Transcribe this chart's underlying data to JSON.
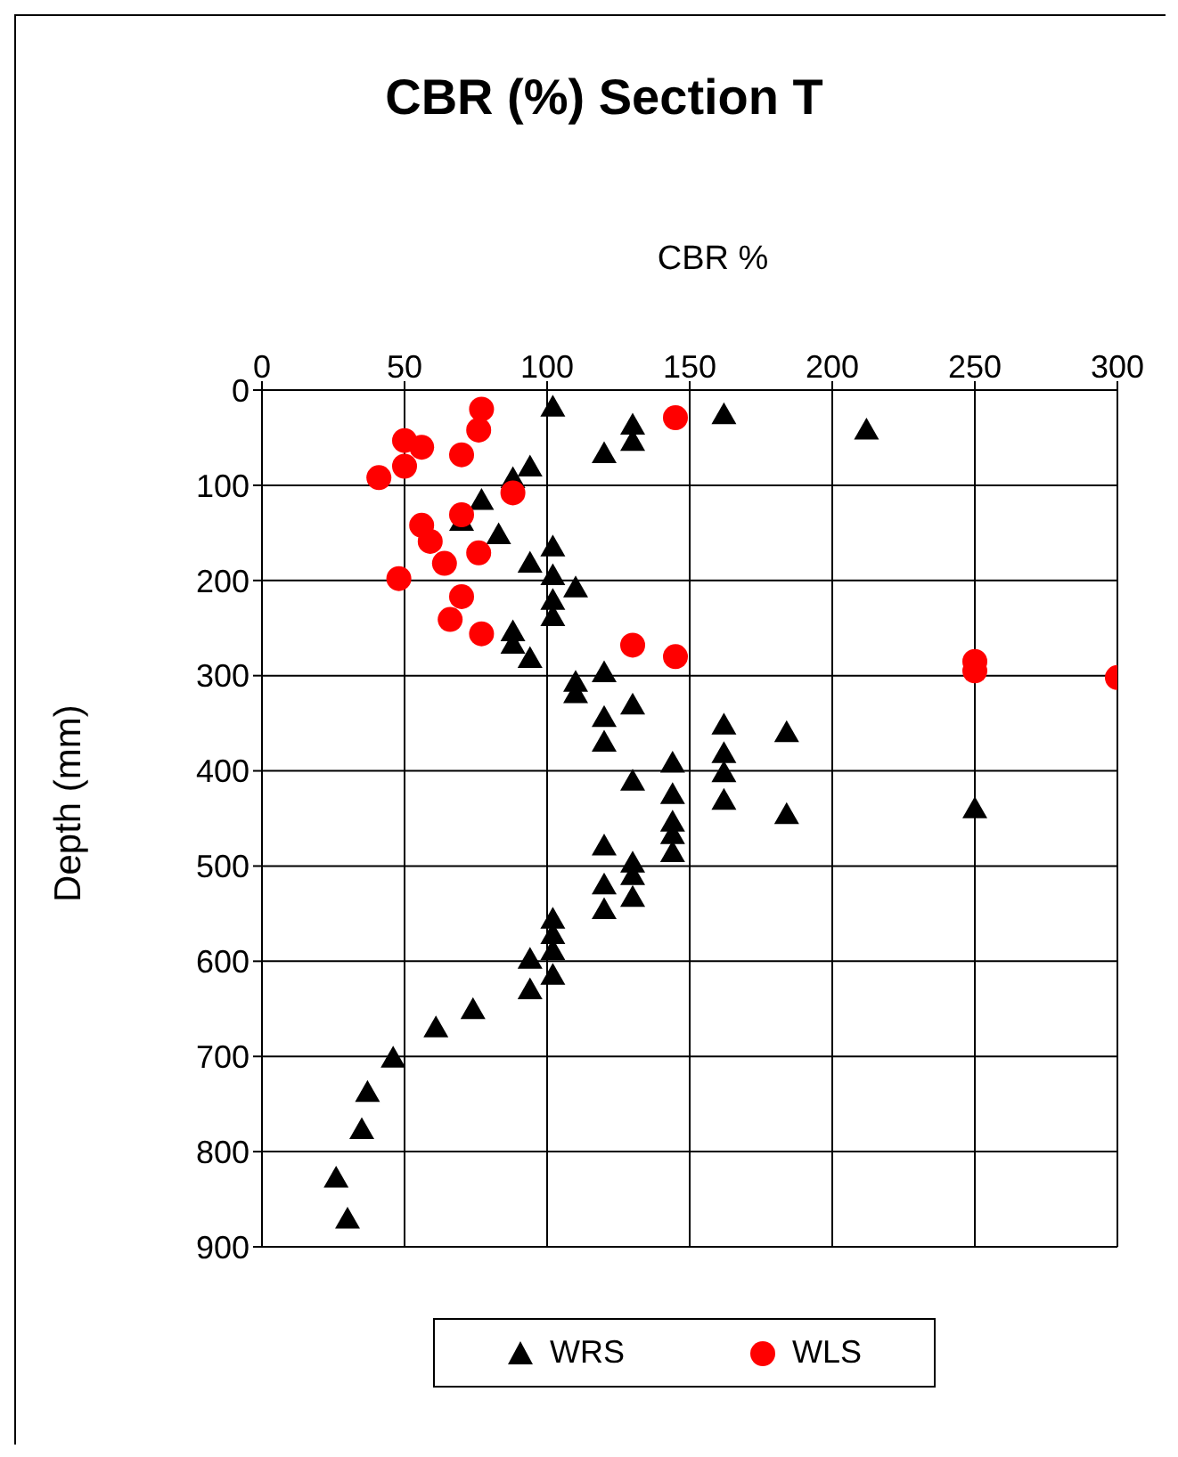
{
  "chart_data": {
    "type": "scatter",
    "title": "CBR (%) Section T",
    "xlabel": "CBR %",
    "ylabel": "Depth (mm)",
    "xlim": [
      0,
      300
    ],
    "xticks": [
      0,
      50,
      100,
      150,
      200,
      250,
      300
    ],
    "ylim": [
      900,
      0
    ],
    "yticks": [
      0,
      100,
      200,
      300,
      400,
      500,
      600,
      700,
      800,
      900
    ],
    "grid": true,
    "legend": "bottom",
    "series": [
      {
        "name": "WRS",
        "color": "#000000",
        "marker": "triangle",
        "x": [
          102,
          130,
          130,
          120,
          94,
          88,
          77,
          70,
          83,
          102,
          94,
          102,
          110,
          102,
          102,
          88,
          88,
          94,
          110,
          110,
          120,
          130,
          120,
          120,
          144,
          162,
          212,
          162,
          184,
          162,
          162,
          162,
          184,
          250,
          130,
          144,
          144,
          144,
          144,
          120,
          130,
          130,
          130,
          120,
          120,
          102,
          102,
          102,
          102,
          94,
          94,
          74,
          61,
          46,
          37,
          35,
          26,
          30
        ],
        "values": [
          18,
          37,
          54,
          67,
          81,
          93,
          116,
          138,
          152,
          165,
          182,
          195,
          208,
          221,
          238,
          254,
          267,
          282,
          307,
          319,
          297,
          331,
          344,
          370,
          392,
          26,
          42,
          352,
          360,
          382,
          402,
          431,
          446,
          440,
          411,
          425,
          454,
          467,
          486,
          479,
          497,
          510,
          533,
          520,
          546,
          556,
          572,
          589,
          615,
          598,
          630,
          651,
          670,
          702,
          738,
          777,
          828,
          871
        ]
      },
      {
        "name": "WLS",
        "color": "#ff0000",
        "marker": "circle",
        "x": [
          77,
          76,
          50,
          56,
          70,
          50,
          41,
          145,
          88,
          70,
          56,
          59,
          76,
          64,
          48,
          70,
          66,
          77,
          130,
          145,
          250,
          250,
          300
        ],
        "values": [
          20,
          42,
          53,
          60,
          68,
          80,
          92,
          29,
          108,
          131,
          142,
          159,
          171,
          182,
          198,
          217,
          241,
          256,
          268,
          280,
          285,
          295,
          302
        ]
      }
    ]
  }
}
